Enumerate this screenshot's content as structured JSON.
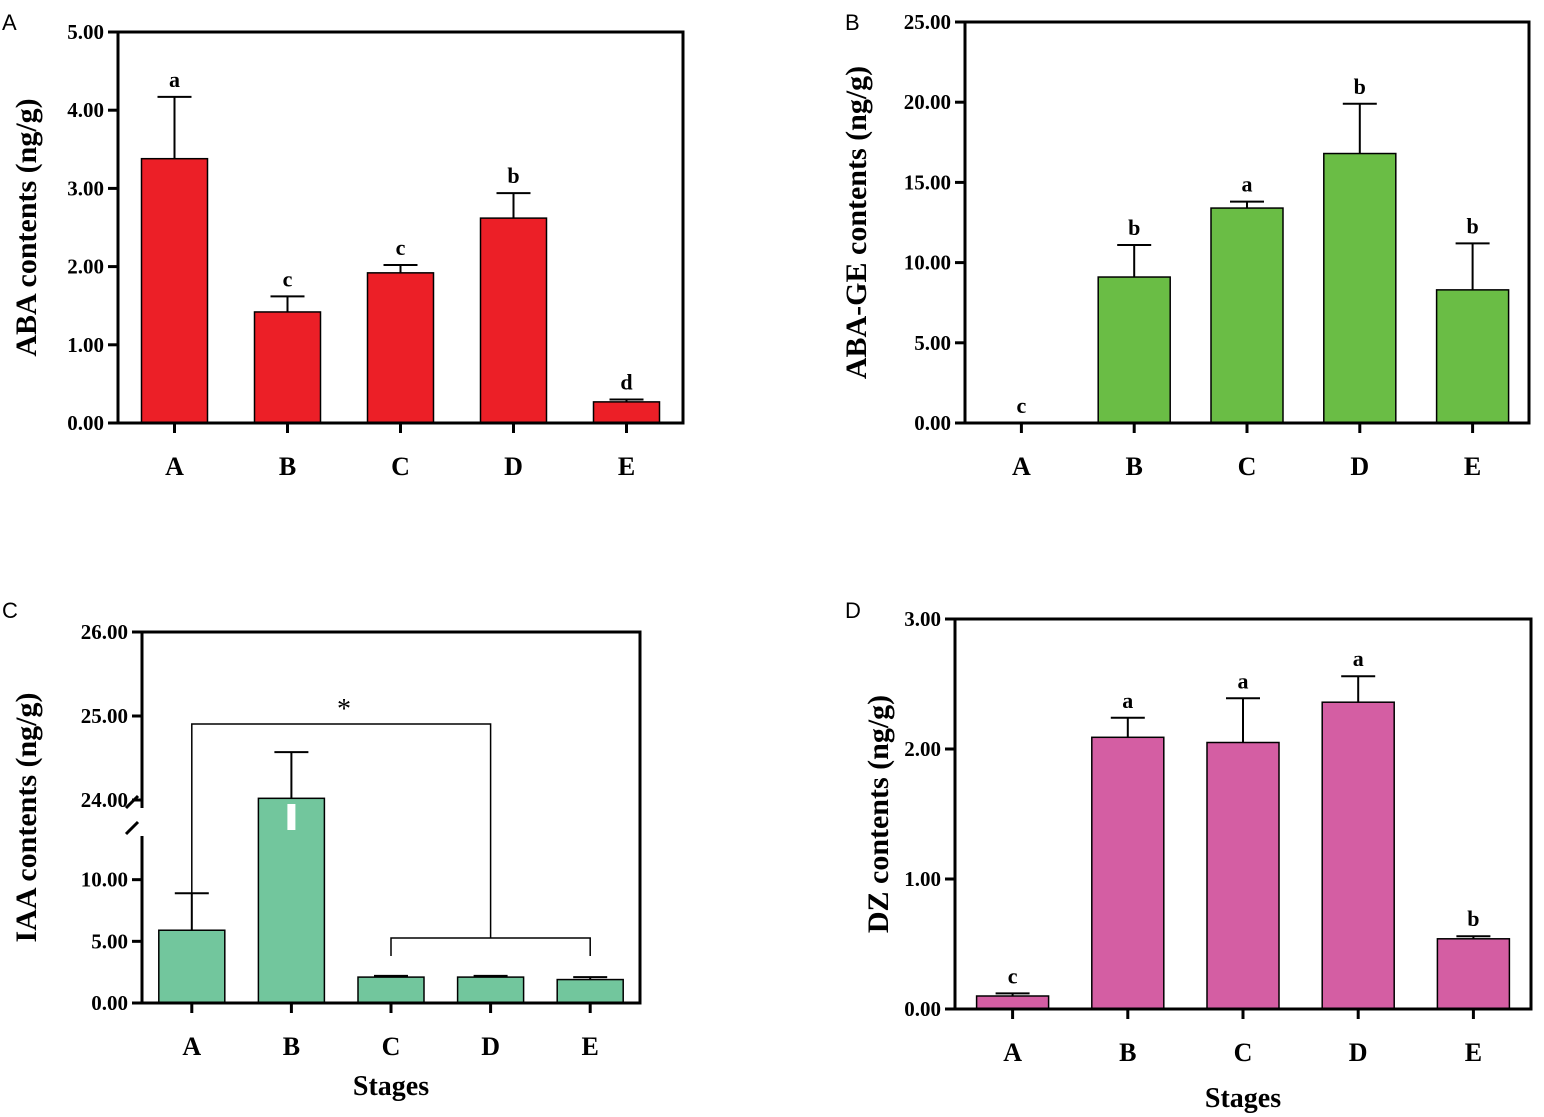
{
  "chart_data": [
    {
      "panel": "A",
      "type": "bar",
      "categories": [
        "A",
        "B",
        "C",
        "D",
        "E"
      ],
      "values": [
        3.38,
        1.42,
        1.92,
        2.62,
        0.27
      ],
      "errors": [
        0.79,
        0.2,
        0.1,
        0.32,
        0.03
      ],
      "letters": [
        "a",
        "c",
        "c",
        "b",
        "d"
      ],
      "ylabel": "ABA contents (ng/g)",
      "xlabel": "",
      "ylim": [
        0,
        5
      ],
      "yticks": [
        "0.00",
        "1.00",
        "2.00",
        "3.00",
        "4.00",
        "5.00"
      ],
      "color": "#ec1f27"
    },
    {
      "panel": "B",
      "type": "bar",
      "categories": [
        "A",
        "B",
        "C",
        "D",
        "E"
      ],
      "values": [
        0.0,
        9.1,
        13.4,
        16.8,
        8.3
      ],
      "errors": [
        0.0,
        2.0,
        0.4,
        3.1,
        2.9
      ],
      "letters": [
        "c",
        "b",
        "a",
        "b",
        "b"
      ],
      "ylabel": "ABA-GE contents (ng/g)",
      "xlabel": "",
      "ylim": [
        0,
        25
      ],
      "yticks": [
        "0.00",
        "5.00",
        "10.00",
        "15.00",
        "20.00",
        "25.00"
      ],
      "color": "#6abd45"
    },
    {
      "panel": "C",
      "type": "bar",
      "categories": [
        "A",
        "B",
        "C",
        "D",
        "E"
      ],
      "values": [
        5.9,
        24.02,
        2.1,
        2.1,
        1.9
      ],
      "errors": [
        3.0,
        0.55,
        0.1,
        0.1,
        0.2
      ],
      "letters": [],
      "ylabel": "IAA contents (ng/g)",
      "xlabel": "Stages",
      "axis_break": {
        "lower_range": [
          0,
          12
        ],
        "upper_range": [
          24,
          26
        ]
      },
      "yticks": [
        "0.00",
        "5.00",
        "10.00",
        "24.00",
        "25.00",
        "26.00"
      ],
      "annotation": "*",
      "color": "#72c69d"
    },
    {
      "panel": "D",
      "type": "bar",
      "categories": [
        "A",
        "B",
        "C",
        "D",
        "E"
      ],
      "values": [
        0.1,
        2.09,
        2.05,
        2.36,
        0.54
      ],
      "errors": [
        0.02,
        0.15,
        0.34,
        0.2,
        0.02
      ],
      "letters": [
        "c",
        "a",
        "a",
        "a",
        "b"
      ],
      "ylabel": "DZ contents (ng/g)",
      "xlabel": "Stages",
      "ylim": [
        0,
        3
      ],
      "yticks": [
        "0.00",
        "1.00",
        "2.00",
        "3.00"
      ],
      "color": "#d45ea3"
    }
  ]
}
